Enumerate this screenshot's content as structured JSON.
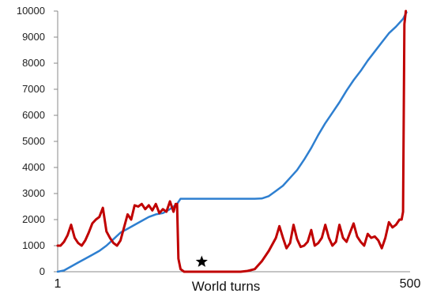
{
  "chart_data": {
    "type": "line",
    "title": "",
    "xlabel": "World turns",
    "ylabel": "",
    "xlim": [
      1,
      500
    ],
    "ylim": [
      0,
      10000
    ],
    "y_ticks": [
      0,
      1000,
      2000,
      3000,
      4000,
      5000,
      6000,
      7000,
      8000,
      9000,
      10000
    ],
    "y_tick_labels": [
      "0",
      "1000",
      "2000",
      "3000",
      "4000",
      "5000",
      "6000",
      "7000",
      "8000",
      "9000",
      "10000"
    ],
    "x_tick_labels": [
      {
        "value": 1,
        "label": "1"
      },
      {
        "value": 500,
        "label": "500"
      }
    ],
    "grid": false,
    "legend": "none",
    "annotations": [
      {
        "type": "star-marker",
        "x": 205,
        "y": 380,
        "color": "#000000"
      }
    ],
    "series": [
      {
        "color": "#2e7fd0",
        "x": [
          1,
          10,
          20,
          30,
          40,
          50,
          60,
          70,
          80,
          90,
          100,
          110,
          120,
          130,
          140,
          150,
          160,
          170,
          175,
          180,
          190,
          200,
          210,
          220,
          230,
          240,
          250,
          260,
          270,
          280,
          290,
          300,
          310,
          320,
          330,
          340,
          350,
          360,
          370,
          380,
          390,
          400,
          410,
          420,
          430,
          440,
          450,
          460,
          470,
          480,
          490,
          493,
          495
        ],
        "values": [
          0,
          50,
          200,
          350,
          500,
          650,
          800,
          1000,
          1250,
          1500,
          1650,
          1800,
          1950,
          2100,
          2200,
          2250,
          2400,
          2600,
          2800,
          2800,
          2800,
          2800,
          2800,
          2800,
          2800,
          2800,
          2800,
          2800,
          2800,
          2800,
          2810,
          2900,
          3100,
          3300,
          3600,
          3900,
          4300,
          4750,
          5250,
          5700,
          6100,
          6500,
          6950,
          7350,
          7700,
          8100,
          8450,
          8800,
          9150,
          9400,
          9700,
          9850,
          9950
        ]
      },
      {
        "color": "#c00000",
        "x": [
          1,
          5,
          10,
          15,
          20,
          25,
          30,
          35,
          40,
          45,
          50,
          55,
          60,
          65,
          70,
          75,
          80,
          85,
          90,
          95,
          100,
          105,
          110,
          115,
          120,
          125,
          130,
          135,
          140,
          145,
          150,
          155,
          160,
          165,
          168,
          170,
          172,
          175,
          180,
          185,
          190,
          195,
          200,
          210,
          220,
          230,
          240,
          250,
          260,
          270,
          280,
          290,
          300,
          310,
          315,
          320,
          325,
          330,
          335,
          340,
          345,
          350,
          355,
          360,
          365,
          370,
          375,
          380,
          385,
          390,
          395,
          400,
          405,
          410,
          415,
          420,
          425,
          430,
          435,
          440,
          445,
          450,
          455,
          460,
          465,
          470,
          475,
          480,
          485,
          488,
          490,
          492,
          494
        ],
        "values": [
          1000,
          1000,
          1150,
          1400,
          1800,
          1300,
          1100,
          1000,
          1200,
          1500,
          1850,
          2000,
          2100,
          2450,
          1550,
          1300,
          1100,
          1000,
          1200,
          1700,
          2200,
          2000,
          2550,
          2500,
          2600,
          2400,
          2550,
          2350,
          2600,
          2250,
          2400,
          2300,
          2700,
          2300,
          2600,
          2600,
          500,
          100,
          0,
          0,
          0,
          0,
          0,
          0,
          0,
          0,
          0,
          0,
          0,
          30,
          100,
          400,
          800,
          1300,
          1750,
          1300,
          900,
          1100,
          1800,
          1250,
          950,
          1000,
          1150,
          1600,
          1000,
          1100,
          1300,
          1800,
          1300,
          1000,
          1150,
          1800,
          1300,
          1150,
          1500,
          1850,
          1350,
          1150,
          1000,
          1450,
          1300,
          1350,
          1200,
          900,
          1300,
          1900,
          1700,
          1800,
          2000,
          2000,
          2300,
          9500,
          10000
        ]
      }
    ]
  }
}
